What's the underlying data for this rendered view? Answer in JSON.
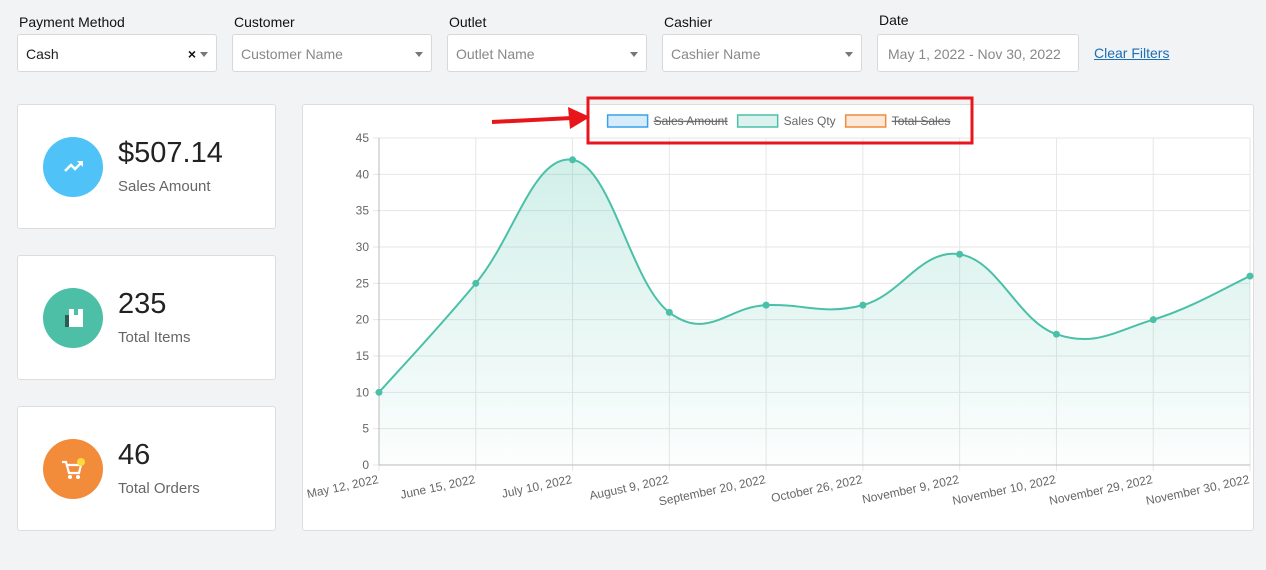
{
  "filters": [
    {
      "label": "Payment Method",
      "text": "Cash",
      "placeholder": false,
      "clearable": true,
      "dropdown": true
    },
    {
      "label": "Customer",
      "text": "Customer Name",
      "placeholder": true,
      "clearable": false,
      "dropdown": true
    },
    {
      "label": "Outlet",
      "text": "Outlet Name",
      "placeholder": true,
      "clearable": false,
      "dropdown": true
    },
    {
      "label": "Cashier",
      "text": "Cashier Name",
      "placeholder": true,
      "clearable": false,
      "dropdown": true
    },
    {
      "label": "Date",
      "text": "May 1, 2022 - Nov 30, 2022",
      "placeholder": true,
      "clearable": false,
      "dropdown": false
    }
  ],
  "clear_filters": "Clear Filters",
  "cards": [
    {
      "value": "$507.14",
      "label": "Sales Amount",
      "color": "#4fc3f7"
    },
    {
      "value": "235",
      "label": "Total Items",
      "color": "#4dbfa6"
    },
    {
      "value": "46",
      "label": "Total Orders",
      "color": "#f28b3a"
    }
  ],
  "chart_data": {
    "type": "line",
    "area": true,
    "categories": [
      "May 12, 2022",
      "June 15, 2022",
      "July 10, 2022",
      "August 9, 2022",
      "September 20, 2022",
      "October 26, 2022",
      "November 9, 2022",
      "November 10, 2022",
      "November 29, 2022",
      "November 30, 2022"
    ],
    "series": [
      {
        "name": "Sales Qty",
        "color": "#4bc0a8",
        "values": [
          10,
          25,
          42,
          21,
          22,
          22,
          29,
          18,
          20,
          26
        ]
      }
    ],
    "legend": [
      {
        "name": "Sales Amount",
        "color": "#36a2eb",
        "hidden": true
      },
      {
        "name": "Sales Qty",
        "color": "#4bc0a8",
        "hidden": false
      },
      {
        "name": "Total Sales",
        "color": "#f28b3a",
        "hidden": true
      }
    ],
    "ylim": [
      0,
      45
    ],
    "yticks": [
      0,
      5,
      10,
      15,
      20,
      25,
      30,
      35,
      40,
      45
    ],
    "grid": true
  }
}
